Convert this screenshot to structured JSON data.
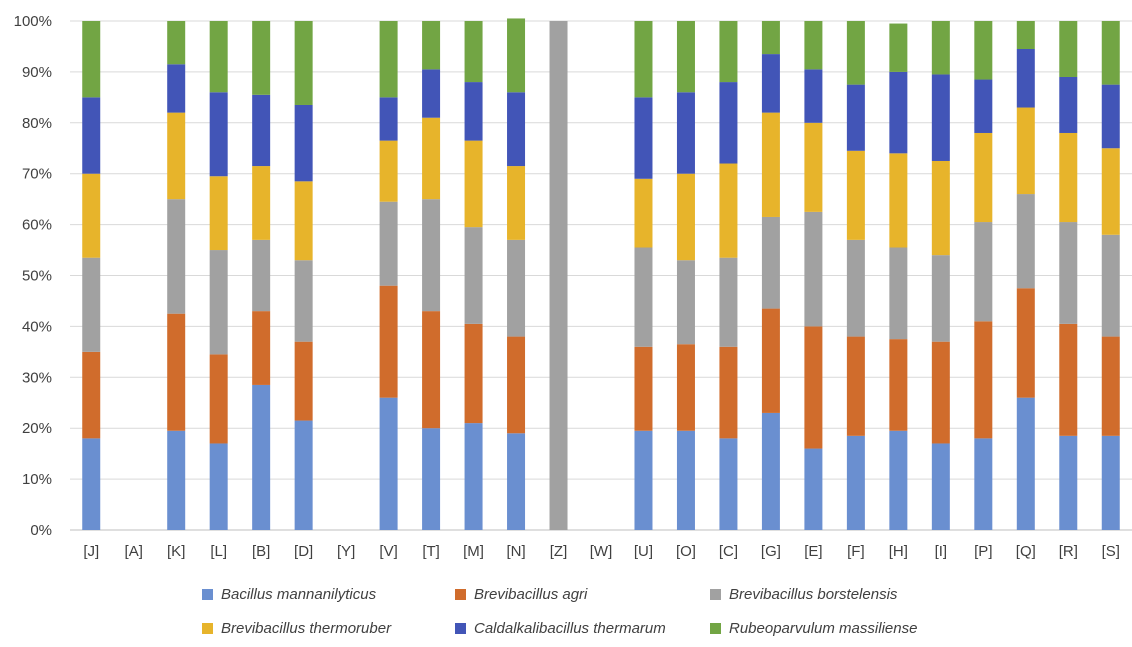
{
  "chart_data": {
    "type": "bar",
    "stacked": true,
    "normalized": true,
    "categories": [
      "[J]",
      "[A]",
      "[K]",
      "[L]",
      "[B]",
      "[D]",
      "[Y]",
      "[V]",
      "[T]",
      "[M]",
      "[N]",
      "[Z]",
      "[W]",
      "[U]",
      "[O]",
      "[C]",
      "[G]",
      "[E]",
      "[F]",
      "[H]",
      "[I]",
      "[P]",
      "[Q]",
      "[R]",
      "[S]"
    ],
    "ylim": [
      0,
      100
    ],
    "yticks": [
      "0%",
      "10%",
      "20%",
      "30%",
      "40%",
      "50%",
      "60%",
      "70%",
      "80%",
      "90%",
      "100%"
    ],
    "grid": true,
    "legend_position": "bottom",
    "series": [
      {
        "name": "Bacillus mannanilyticus",
        "color": "#6a8fd0",
        "values": [
          18,
          0,
          19.5,
          17,
          28.5,
          21.5,
          0,
          26,
          20,
          21,
          19,
          0,
          0,
          19.5,
          19.5,
          18,
          23,
          16,
          18.5,
          19.5,
          17,
          18,
          26,
          18.5,
          18.5
        ]
      },
      {
        "name": "Brevibacillus agri",
        "color": "#d06c2c",
        "values": [
          17,
          0,
          23,
          17.5,
          14.5,
          15.5,
          0,
          22,
          23,
          19.5,
          19,
          0,
          0,
          16.5,
          17,
          18,
          20.5,
          24,
          19.5,
          18,
          20,
          23,
          21.5,
          22,
          19.5
        ]
      },
      {
        "name": "Brevibacillus borstelensis",
        "color": "#a1a1a1",
        "values": [
          18.5,
          0,
          22.5,
          20.5,
          14,
          16,
          0,
          16.5,
          22,
          19,
          19,
          100,
          0,
          19.5,
          16.5,
          17.5,
          18,
          22.5,
          19,
          18,
          17,
          19.5,
          18.5,
          20,
          20
        ]
      },
      {
        "name": "Brevibacillus thermoruber",
        "color": "#e7b42b",
        "values": [
          16.5,
          0,
          17,
          14.5,
          14.5,
          15.5,
          0,
          12,
          16,
          17,
          14.5,
          0,
          0,
          13.5,
          17,
          18.5,
          20.5,
          17.5,
          17.5,
          18.5,
          18.5,
          17.5,
          17,
          17.5,
          17
        ]
      },
      {
        "name": "Caldalkalibacillus thermarum",
        "color": "#4255b7",
        "values": [
          15,
          0,
          9.5,
          16.5,
          14,
          15,
          0,
          8.5,
          9.5,
          11.5,
          14.5,
          0,
          0,
          16,
          16,
          16,
          11.5,
          10.5,
          13,
          16,
          17,
          10.5,
          11.5,
          11,
          12.5
        ]
      },
      {
        "name": "Rubeoparvulum massiliense",
        "color": "#72a544",
        "values": [
          15,
          0,
          8.5,
          14,
          14.5,
          16.5,
          0,
          15,
          9.5,
          12,
          14.5,
          0,
          0,
          15,
          14,
          12,
          6.5,
          9.5,
          12.5,
          9.5,
          10.5,
          11.5,
          5.5,
          11,
          12.5
        ]
      }
    ]
  }
}
